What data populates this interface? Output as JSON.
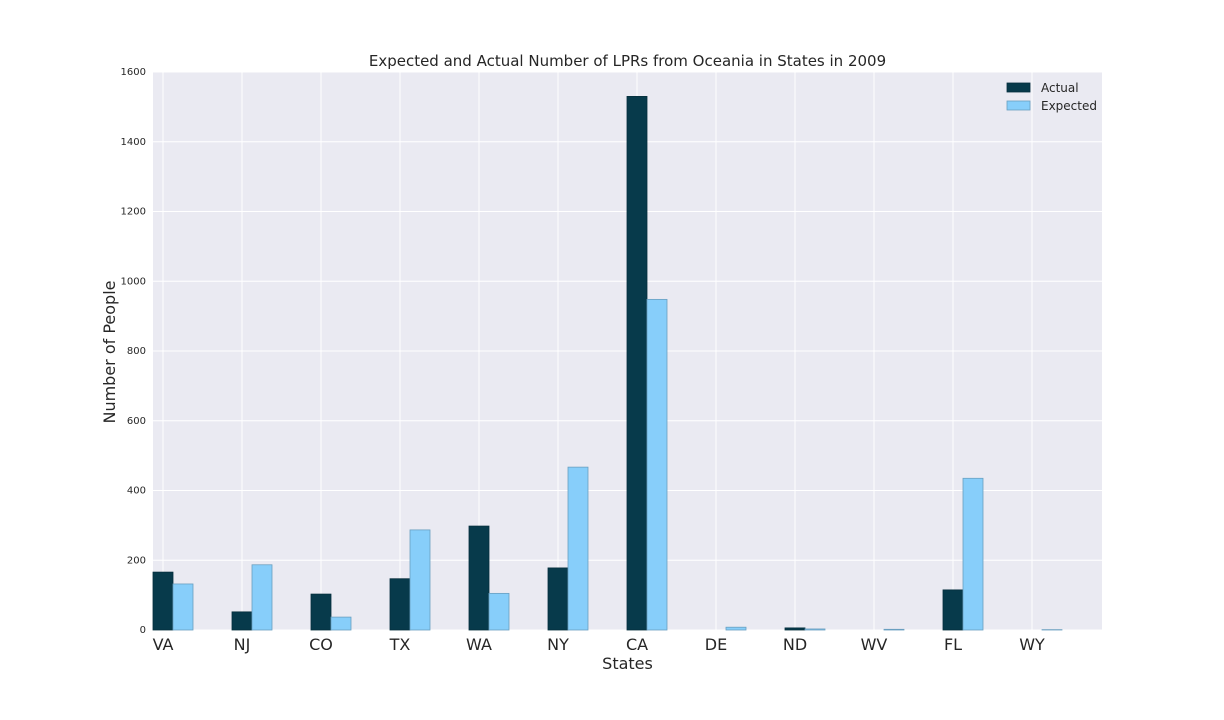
{
  "chart_data": {
    "type": "bar",
    "title": "Expected and Actual Number of LPRs from Oceania in States in 2009",
    "xlabel": "States",
    "ylabel": "Number of People",
    "categories": [
      "VA",
      "NJ",
      "CO",
      "TX",
      "WA",
      "NY",
      "CA",
      "DE",
      "ND",
      "WV",
      "FL",
      "WY"
    ],
    "series": [
      {
        "name": "Actual",
        "color": "#073a4b",
        "values": [
          166,
          52,
          103,
          147,
          298,
          178,
          1530,
          0,
          6,
          0,
          115,
          0
        ]
      },
      {
        "name": "Expected",
        "color": "#87cefa",
        "values": [
          132,
          187,
          37,
          287,
          105,
          467,
          948,
          8,
          3,
          2,
          435,
          1
        ]
      }
    ],
    "ylim": [
      0,
      1600
    ],
    "yticks": [
      0,
      200,
      400,
      600,
      800,
      1000,
      1200,
      1400,
      1600
    ],
    "grid": true,
    "legend_position": "top-right",
    "background": "#eaeaf2"
  }
}
